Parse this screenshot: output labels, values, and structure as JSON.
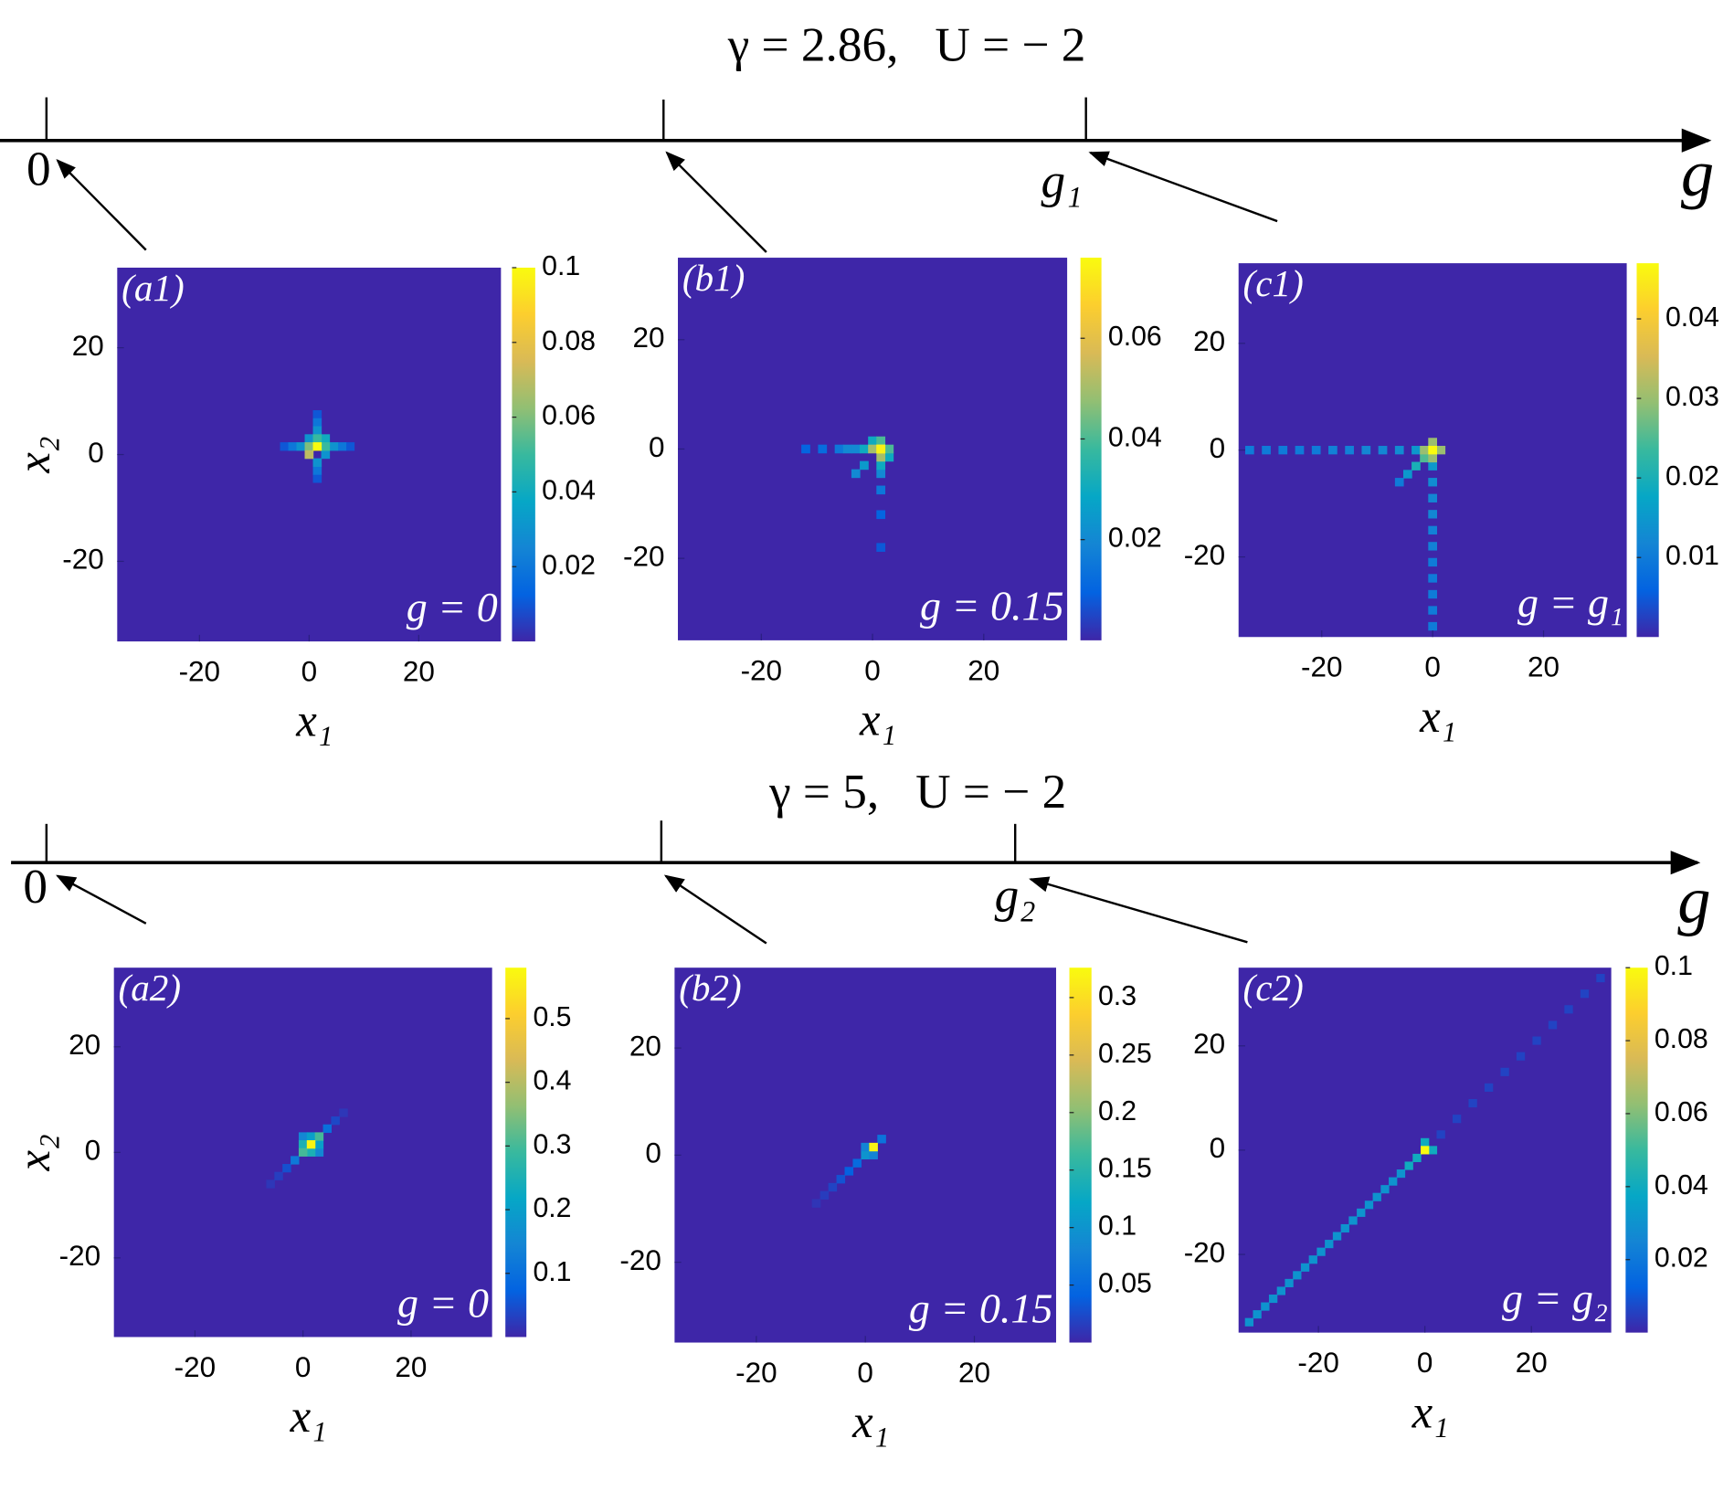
{
  "timelines": [
    {
      "title": "γ = 2.86,   U = − 2",
      "start_label": "0",
      "mark_label": "g₁",
      "axis_label": "g"
    },
    {
      "title": "γ = 5,   U = − 2",
      "start_label": "0",
      "mark_label": "g₂",
      "axis_label": "g"
    }
  ],
  "chart_data": [
    {
      "type": "heatmap",
      "panel_label": "(a1)",
      "annotation": "g = 0",
      "xlabel": "x₁",
      "ylabel": "x₂",
      "xlim": [
        -35,
        35
      ],
      "ylim": [
        -35,
        35
      ],
      "xticks": [
        -20,
        0,
        20
      ],
      "yticks": [
        -20,
        0,
        20
      ],
      "clim": [
        0,
        0.1
      ],
      "cticks": [
        0.02,
        0.04,
        0.06,
        0.08,
        0.1
      ],
      "x": [
        -4.5,
        7.5,
        1.5,
        1.5,
        -3,
        6,
        1.5,
        1.5,
        0,
        3,
        -1.5,
        4.5,
        1.5,
        1.5,
        3,
        0,
        3,
        0,
        1.5,
        0,
        1.5
      ],
      "y": [
        1.5,
        1.5,
        -4.5,
        7.5,
        1.5,
        1.5,
        -3,
        6,
        3,
        0,
        1.5,
        1.5,
        -1.5,
        4.5,
        3,
        1.5,
        1.5,
        0,
        3,
        0,
        1.5
      ],
      "values": [
        0.01,
        0.01,
        0.01,
        0.01,
        0.02,
        0.02,
        0.02,
        0.02,
        0.03,
        0.03,
        0.03,
        0.03,
        0.03,
        0.03,
        0.04,
        0.06,
        0.05,
        0.06,
        0.05,
        0.07,
        0.1
      ]
    },
    {
      "type": "heatmap",
      "panel_label": "(b1)",
      "annotation": "g = 0.15",
      "xlabel": "x₁",
      "xlim": [
        -35,
        35
      ],
      "ylim": [
        -35,
        35
      ],
      "xticks": [
        -20,
        0,
        20
      ],
      "yticks": [
        -20,
        0,
        20
      ],
      "clim": [
        0,
        0.076
      ],
      "cticks": [
        0.02,
        0.04,
        0.06
      ],
      "x": [
        1.5,
        -12,
        1.5,
        -9,
        -6,
        1.5,
        -3,
        -4.5,
        1.5,
        -3,
        -1.5,
        -1.5,
        0,
        1.5,
        3,
        1.5,
        1.5,
        3,
        0,
        1.5,
        1.5
      ],
      "y": [
        -18,
        0,
        -12,
        0,
        0,
        -7.5,
        -4.5,
        0,
        -4.5,
        0,
        -3,
        0,
        1.5,
        -3,
        -1.5,
        1.5,
        -1.5,
        0,
        0,
        0,
        0
      ],
      "values": [
        0.008,
        0.01,
        0.01,
        0.012,
        0.015,
        0.015,
        0.02,
        0.02,
        0.02,
        0.02,
        0.025,
        0.03,
        0.03,
        0.03,
        0.03,
        0.04,
        0.05,
        0.04,
        0.05,
        0.074,
        0.074
      ]
    },
    {
      "type": "heatmap",
      "panel_label": "(c1)",
      "annotation": "g = g₁",
      "xlabel": "x₁",
      "xlim": [
        -35,
        35
      ],
      "ylim": [
        -35,
        35
      ],
      "xticks": [
        -20,
        0,
        20
      ],
      "yticks": [
        -20,
        0,
        20
      ],
      "clim": [
        0,
        0.047
      ],
      "cticks": [
        0.01,
        0.02,
        0.03,
        0.04
      ],
      "x": [
        -33,
        -30,
        -27,
        -24,
        -21,
        -18,
        -15,
        -12,
        -9,
        -6,
        -3,
        0,
        0,
        0,
        0,
        0,
        0,
        0,
        0,
        0,
        0,
        0,
        -6,
        -4.5,
        -3,
        -1.5,
        1.5,
        -1.5,
        0,
        0,
        0
      ],
      "y": [
        0,
        0,
        0,
        0,
        0,
        0,
        0,
        0,
        0,
        0,
        0,
        -33,
        -30,
        -27,
        -24,
        -21,
        -18,
        -15,
        -12,
        -9,
        -6,
        -3,
        -6,
        -4.5,
        -3,
        -1.5,
        0,
        0,
        1.5,
        -1.5,
        0
      ],
      "values": [
        0.01,
        0.01,
        0.01,
        0.01,
        0.01,
        0.011,
        0.011,
        0.012,
        0.012,
        0.013,
        0.015,
        0.01,
        0.01,
        0.01,
        0.01,
        0.01,
        0.011,
        0.011,
        0.012,
        0.012,
        0.013,
        0.015,
        0.01,
        0.015,
        0.02,
        0.025,
        0.03,
        0.03,
        0.03,
        0.03,
        0.047
      ]
    },
    {
      "type": "heatmap",
      "panel_label": "(a2)",
      "annotation": "g = 0",
      "xlabel": "x₁",
      "ylabel": "x₂",
      "xlim": [
        -35,
        35
      ],
      "ylim": [
        -35,
        35
      ],
      "xticks": [
        -20,
        0,
        20
      ],
      "yticks": [
        -20,
        0,
        20
      ],
      "clim": [
        0,
        0.58
      ],
      "cticks": [
        0.1,
        0.2,
        0.3,
        0.4,
        0.5
      ],
      "x": [
        -6,
        7.5,
        -4.5,
        6,
        -3,
        4.5,
        -1.5,
        0,
        3,
        3,
        1.5,
        0,
        1.5,
        0,
        3,
        1.5
      ],
      "y": [
        -6,
        7.5,
        -4.5,
        6,
        -3,
        4.5,
        -1.5,
        3,
        0,
        1.5,
        3,
        1.5,
        0,
        0,
        3,
        1.5
      ],
      "values": [
        0.02,
        0.02,
        0.03,
        0.04,
        0.05,
        0.1,
        0.12,
        0.15,
        0.15,
        0.2,
        0.2,
        0.25,
        0.25,
        0.3,
        0.3,
        0.57
      ]
    },
    {
      "type": "heatmap",
      "panel_label": "(b2)",
      "annotation": "g = 0.15",
      "xlabel": "x₁",
      "xlim": [
        -35,
        35
      ],
      "ylim": [
        -35,
        35
      ],
      "xticks": [
        -20,
        0,
        20
      ],
      "yticks": [
        -20,
        0,
        20
      ],
      "clim": [
        0,
        0.326
      ],
      "cticks": [
        0.05,
        0.1,
        0.15,
        0.2,
        0.25,
        0.3
      ],
      "x": [
        -9,
        -7.5,
        -6,
        -4.5,
        -3,
        -1.5,
        0,
        3,
        1.5,
        0,
        1.5
      ],
      "y": [
        -9,
        -7.5,
        -6,
        -4.5,
        -3,
        -1.5,
        0,
        3,
        0,
        1.5,
        1.5
      ],
      "values": [
        0.01,
        0.015,
        0.02,
        0.03,
        0.04,
        0.05,
        0.1,
        0.06,
        0.08,
        0.08,
        0.32
      ]
    },
    {
      "type": "heatmap",
      "panel_label": "(c2)",
      "annotation": "g = g₂",
      "xlabel": "x₁",
      "xlim": [
        -35,
        35
      ],
      "ylim": [
        -35,
        35
      ],
      "xticks": [
        -20,
        0,
        20
      ],
      "yticks": [
        -20,
        0,
        20
      ],
      "clim": [
        0,
        0.1
      ],
      "cticks": [
        0.02,
        0.04,
        0.06,
        0.08,
        0.1
      ],
      "x": [
        3,
        6,
        9,
        12,
        15,
        18,
        21,
        24,
        27,
        30,
        33,
        -33,
        -31.5,
        -30,
        -28.5,
        -27,
        -25.5,
        -24,
        -22.5,
        -21,
        -19.5,
        -18,
        -16.5,
        -15,
        -13.5,
        -12,
        -10.5,
        -9,
        -7.5,
        -6,
        -4.5,
        -3,
        -1.5,
        1.5,
        0,
        0
      ],
      "y": [
        3,
        6,
        9,
        12,
        15,
        18,
        21,
        24,
        27,
        30,
        33,
        -33,
        -31.5,
        -30,
        -28.5,
        -27,
        -25.5,
        -24,
        -22.5,
        -21,
        -19.5,
        -18,
        -16.5,
        -15,
        -13.5,
        -12,
        -10.5,
        -9,
        -7.5,
        -6,
        -4.5,
        -3,
        -1.5,
        0,
        1.5,
        0
      ],
      "values": [
        0.006,
        0.006,
        0.006,
        0.006,
        0.006,
        0.006,
        0.006,
        0.006,
        0.006,
        0.006,
        0.006,
        0.03,
        0.03,
        0.03,
        0.03,
        0.03,
        0.03,
        0.03,
        0.03,
        0.03,
        0.03,
        0.03,
        0.03,
        0.03,
        0.03,
        0.03,
        0.03,
        0.03,
        0.03,
        0.03,
        0.03,
        0.04,
        0.04,
        0.04,
        0.04,
        0.1
      ]
    }
  ]
}
